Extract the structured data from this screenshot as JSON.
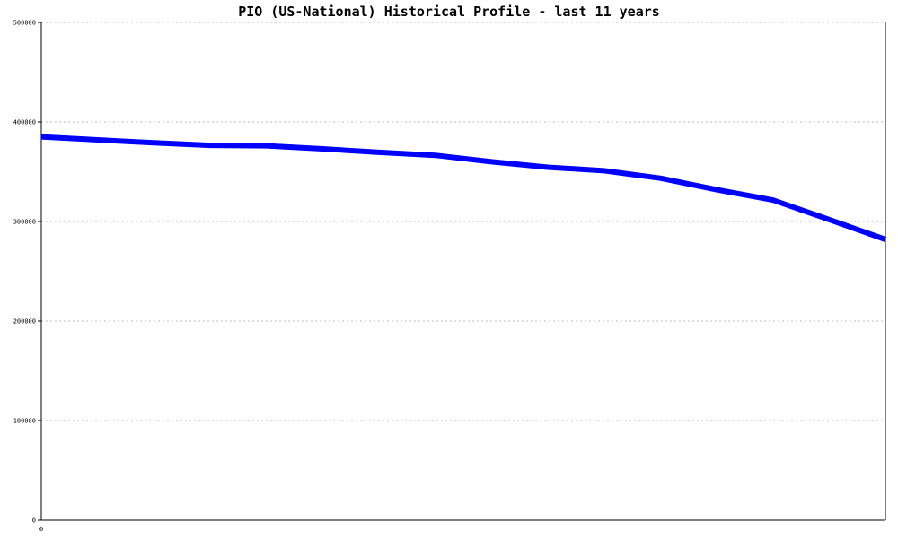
{
  "chart_data": {
    "type": "line",
    "title": "PIO (US-National) Historical Profile - last 11 years",
    "xlabel": "",
    "ylabel": "",
    "x_tick_labels": [
      "0"
    ],
    "ylim": [
      0,
      500000
    ],
    "y_ticks": [
      0,
      100000,
      200000,
      300000,
      400000,
      500000
    ],
    "y_tick_labels": [
      "0",
      "100000",
      "200000",
      "300000",
      "400000",
      "500000"
    ],
    "grid": "horizontal dotted",
    "legend": "none",
    "series": [
      {
        "color": "#0000ff",
        "x": [
          0,
          1,
          2,
          3,
          4,
          5,
          6,
          7,
          8,
          9,
          10,
          11,
          12,
          13,
          14,
          15
        ],
        "values": [
          385000,
          382000,
          379000,
          376500,
          376000,
          373000,
          369500,
          366500,
          360000,
          354500,
          351000,
          343500,
          332000,
          321500,
          302000,
          282000
        ]
      }
    ]
  }
}
